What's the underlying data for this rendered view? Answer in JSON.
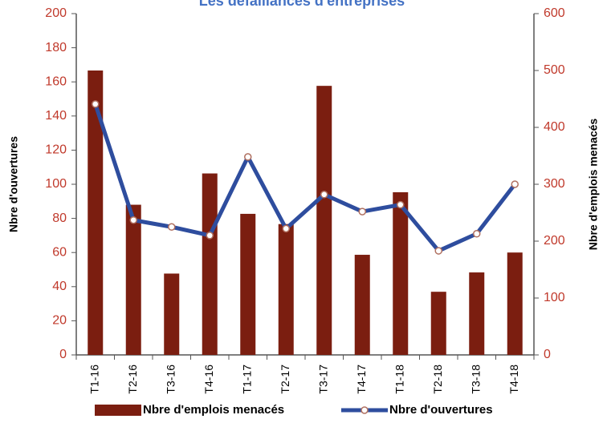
{
  "chart_data": {
    "type": "bar-line",
    "title": "Les défaillances d'entreprises",
    "y_label": "Nbre d'ouvertures",
    "y2_label": "Nbre d'emplois menacés",
    "categories": [
      "T1-16",
      "T2-16",
      "T3-16",
      "T4-16",
      "T1-17",
      "T2-17",
      "T3-17",
      "T4-17",
      "T1-18",
      "T2-18",
      "T3-18",
      "T4-18"
    ],
    "series": [
      {
        "name": "Nbre d'emplois menacés",
        "type": "bar",
        "axis": "y2",
        "color": "#7b1e10",
        "values": [
          500,
          264,
          143,
          319,
          248,
          230,
          473,
          176,
          286,
          111,
          145,
          180
        ]
      },
      {
        "name": "Nbre d'ouvertures",
        "type": "line",
        "axis": "y",
        "color": "#2e4d9e",
        "values": [
          147,
          79,
          75,
          70,
          116,
          74,
          94,
          84,
          88,
          61,
          71,
          100
        ]
      }
    ],
    "ylim": [
      0,
      200
    ],
    "yticks": [
      0,
      20,
      40,
      60,
      80,
      100,
      120,
      140,
      160,
      180,
      200
    ],
    "y2lim": [
      0,
      600
    ],
    "y2ticks": [
      0,
      100,
      200,
      300,
      400,
      500,
      600
    ],
    "grid": false,
    "legend": "bottom"
  }
}
